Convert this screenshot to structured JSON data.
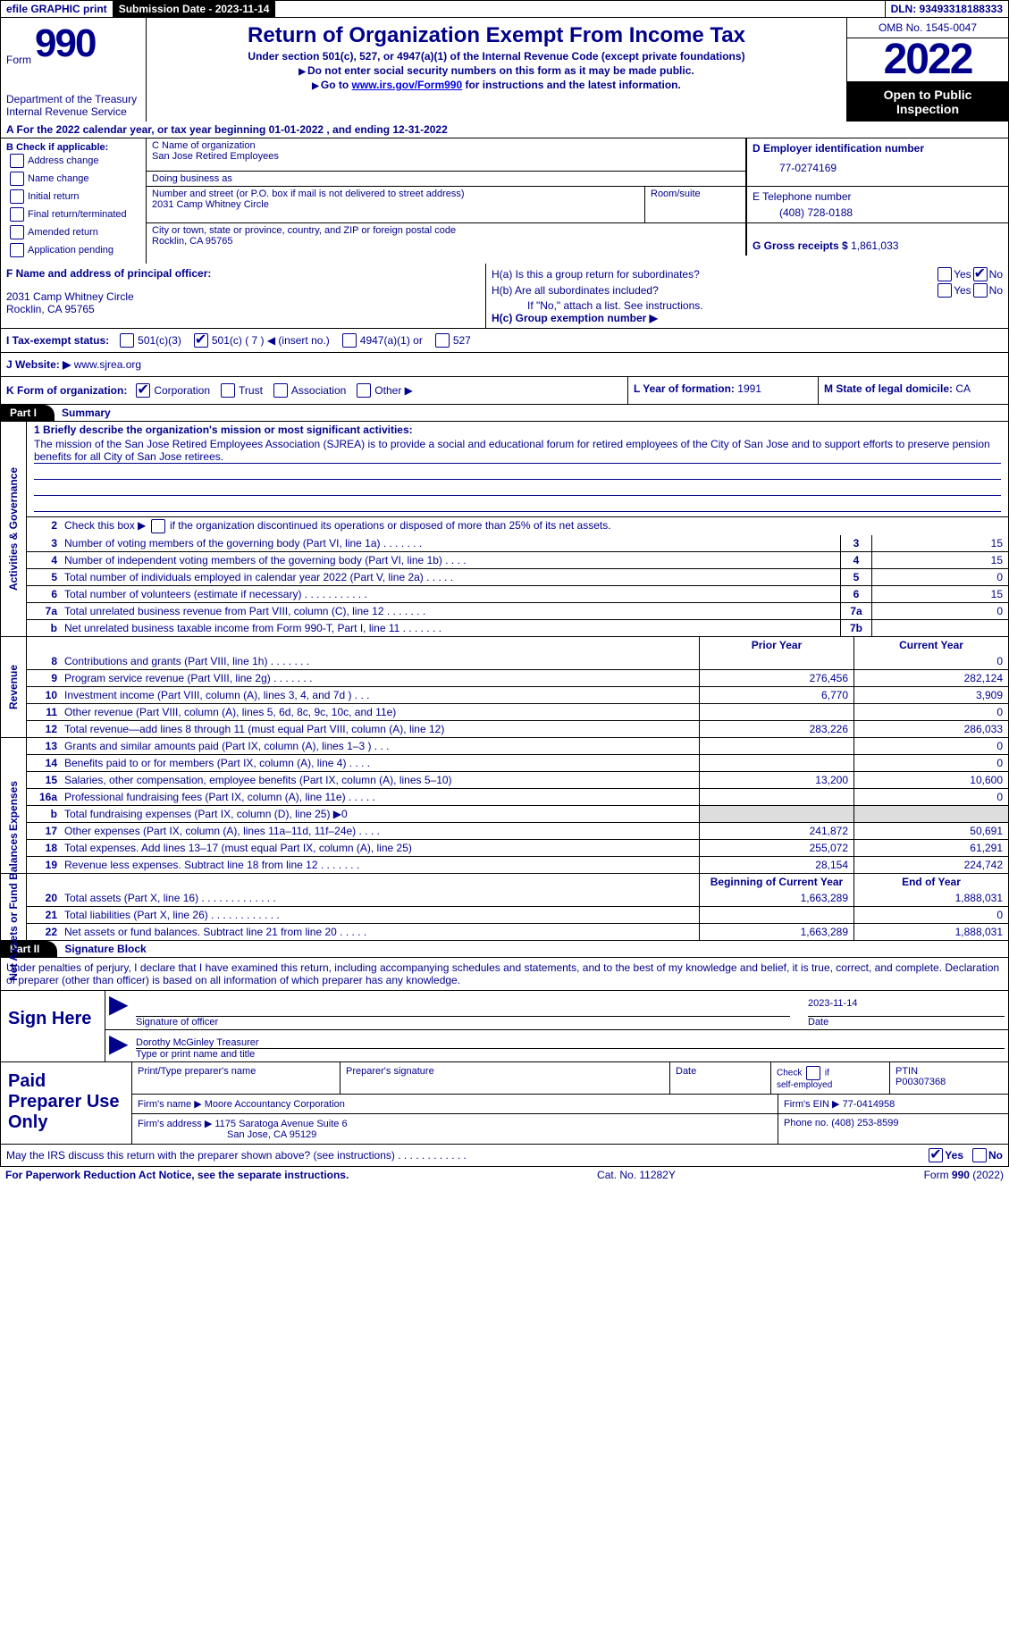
{
  "colors": {
    "primary": "#00008B",
    "black": "#000000",
    "white": "#ffffff",
    "link": "#0000EE",
    "shaded": "#dddddd"
  },
  "topbar": {
    "efile": "efile GRAPHIC print",
    "submission": "Submission Date - 2023-11-14",
    "dln": "DLN: 93493318188333"
  },
  "header": {
    "form_label": "Form",
    "form_num": "990",
    "dept": "Department of the Treasury",
    "irs": "Internal Revenue Service",
    "title": "Return of Organization Exempt From Income Tax",
    "sub1": "Under section 501(c), 527, or 4947(a)(1) of the Internal Revenue Code (except private foundations)",
    "sub2": "Do not enter social security numbers on this form as it may be made public.",
    "sub3_prefix": "Go to ",
    "sub3_link": "www.irs.gov/Form990",
    "sub3_suffix": " for instructions and the latest information.",
    "omb": "OMB No. 1545-0047",
    "year": "2022",
    "open": "Open to Public Inspection"
  },
  "line_a": "A  For the 2022 calendar year, or tax year beginning 01-01-2022     , and ending 12-31-2022",
  "box_b": {
    "title": "B Check if applicable:",
    "items": [
      "Address change",
      "Name change",
      "Initial return",
      "Final return/terminated",
      "Amended return",
      "Application pending"
    ]
  },
  "box_c": {
    "name_label": "C Name of organization",
    "name": "San Jose Retired Employees",
    "dba_label": "Doing business as",
    "dba": "",
    "street_label": "Number and street (or P.O. box if mail is not delivered to street address)",
    "street": "2031 Camp Whitney Circle",
    "room_label": "Room/suite",
    "city_label": "City or town, state or province, country, and ZIP or foreign postal code",
    "city": "Rocklin, CA   95765"
  },
  "box_d": {
    "label": "D Employer identification number",
    "value": "77-0274169"
  },
  "box_e": {
    "label": "E Telephone number",
    "value": "(408) 728-0188"
  },
  "box_g": {
    "label": "G Gross receipts $",
    "value": "1,861,033"
  },
  "box_f": {
    "label": "F  Name and address of principal officer:",
    "line1": "2031 Camp Whitney Circle",
    "line2": "Rocklin, CA   95765"
  },
  "box_h": {
    "a": "H(a)  Is this a group return for subordinates?",
    "b": "H(b)  Are all subordinates included?",
    "note": "If \"No,\" attach a list. See instructions.",
    "c": "H(c)  Group exemption number ▶",
    "yes": "Yes",
    "no": "No"
  },
  "line_i": {
    "label": "I    Tax-exempt status:",
    "o1": "501(c)(3)",
    "o2": "501(c) ( 7 ) ◀ (insert no.)",
    "o3": "4947(a)(1) or",
    "o4": "527"
  },
  "line_j": {
    "label": "J   Website: ▶",
    "value": "www.sjrea.org"
  },
  "line_k": {
    "label": "K Form of organization:",
    "o1": "Corporation",
    "o2": "Trust",
    "o3": "Association",
    "o4": "Other ▶"
  },
  "line_l": {
    "label": "L Year of formation:",
    "value": "1991"
  },
  "line_m": {
    "label": "M State of legal domicile:",
    "value": "CA"
  },
  "part1": {
    "tab": "Part I",
    "title": "Summary"
  },
  "activities": {
    "label": "Activities & Governance",
    "l1": "1   Briefly describe the organization's mission or most significant activities:",
    "mission": "The mission of the San Jose Retired Employees Association (SJREA) is to provide a social and educational forum for retired employees of the City of San Jose and to support efforts to preserve pension benefits for all City of San Jose retirees.",
    "l2": "Check this box ▶         if the organization discontinued its operations or disposed of more than 25% of its net assets.",
    "rows": [
      {
        "n": "3",
        "d": "Number of voting members of the governing body (Part VI, line 1a)    .     .     .     .     .     .     .",
        "m": "3",
        "v": "15"
      },
      {
        "n": "4",
        "d": "Number of independent voting members of the governing body (Part VI, line 1b)    .     .     .     .",
        "m": "4",
        "v": "15"
      },
      {
        "n": "5",
        "d": "Total number of individuals employed in calendar year 2022 (Part V, line 2a)    .     .     .     .     .",
        "m": "5",
        "v": "0"
      },
      {
        "n": "6",
        "d": "Total number of volunteers (estimate if necessary)     .     .     .     .     .     .     .     .     .     .     .",
        "m": "6",
        "v": "15"
      },
      {
        "n": "7a",
        "d": "Total unrelated business revenue from Part VIII, column (C), line 12     .     .     .     .     .     .     .",
        "m": "7a",
        "v": "0"
      },
      {
        "n": "b",
        "d": "Net unrelated business taxable income from Form 990-T, Part I, line 11    .     .     .     .     .     .     .",
        "m": "7b",
        "v": ""
      }
    ]
  },
  "columns": {
    "prior": "Prior Year",
    "current": "Current Year",
    "begin": "Beginning of Current Year",
    "end": "End of Year"
  },
  "revenue": {
    "label": "Revenue",
    "rows": [
      {
        "n": "8",
        "d": "Contributions and grants (Part VIII, line 1h)    .     .     .     .     .     .     .",
        "p": "",
        "c": "0"
      },
      {
        "n": "9",
        "d": "Program service revenue (Part VIII, line 2g)     .     .     .     .     .     .     .",
        "p": "276,456",
        "c": "282,124"
      },
      {
        "n": "10",
        "d": "Investment income (Part VIII, column (A), lines 3, 4, and 7d )     .     .     .",
        "p": "6,770",
        "c": "3,909"
      },
      {
        "n": "11",
        "d": "Other revenue (Part VIII, column (A), lines 5, 6d, 8c, 9c, 10c, and 11e)",
        "p": "",
        "c": "0"
      },
      {
        "n": "12",
        "d": "Total revenue—add lines 8 through 11 (must equal Part VIII, column (A), line 12)",
        "p": "283,226",
        "c": "286,033"
      }
    ]
  },
  "expenses": {
    "label": "Expenses",
    "rows": [
      {
        "n": "13",
        "d": "Grants and similar amounts paid (Part IX, column (A), lines 1–3 )    .     .     .",
        "p": "",
        "c": "0"
      },
      {
        "n": "14",
        "d": "Benefits paid to or for members (Part IX, column (A), line 4)    .     .     .     .",
        "p": "",
        "c": "0"
      },
      {
        "n": "15",
        "d": "Salaries, other compensation, employee benefits (Part IX, column (A), lines 5–10)",
        "p": "13,200",
        "c": "10,600"
      },
      {
        "n": "16a",
        "d": "Professional fundraising fees (Part IX, column (A), line 11e)     .     .     .     .     .",
        "p": "",
        "c": "0"
      },
      {
        "n": "b",
        "d": "Total fundraising expenses (Part IX, column (D), line 25) ▶0",
        "p": "SHADED",
        "c": "SHADED"
      },
      {
        "n": "17",
        "d": "Other expenses (Part IX, column (A), lines 11a–11d, 11f–24e)    .     .     .     .",
        "p": "241,872",
        "c": "50,691"
      },
      {
        "n": "18",
        "d": "Total expenses. Add lines 13–17 (must equal Part IX, column (A), line 25)",
        "p": "255,072",
        "c": "61,291"
      },
      {
        "n": "19",
        "d": "Revenue less expenses. Subtract line 18 from line 12    .     .     .     .     .     .     .",
        "p": "28,154",
        "c": "224,742"
      }
    ]
  },
  "netassets": {
    "label": "Net Assets or Fund Balances",
    "rows": [
      {
        "n": "20",
        "d": "Total assets (Part X, line 16)    .     .     .     .     .     .     .     .     .     .     .     .     .",
        "p": "1,663,289",
        "c": "1,888,031"
      },
      {
        "n": "21",
        "d": "Total liabilities (Part X, line 26)    .     .     .     .     .     .     .     .     .     .     .     .",
        "p": "",
        "c": "0"
      },
      {
        "n": "22",
        "d": "Net assets or fund balances. Subtract line 21 from line 20    .     .     .     .     .",
        "p": "1,663,289",
        "c": "1,888,031"
      }
    ]
  },
  "part2": {
    "tab": "Part II",
    "title": "Signature Block"
  },
  "sig_decl": "Under penalties of perjury, I declare that I have examined this return, including accompanying schedules and statements, and to the best of my knowledge and belief, it is true, correct, and complete. Declaration of preparer (other than officer) is based on all information of which preparer has any knowledge.",
  "sign": {
    "label": "Sign Here",
    "officer_sig": "Signature of officer",
    "date_label": "Date",
    "date": "2023-11-14",
    "name": "Dorothy McGinley  Treasurer",
    "name_label": "Type or print name and title"
  },
  "preparer": {
    "label": "Paid Preparer Use Only",
    "h1": "Print/Type preparer's name",
    "h2": "Preparer's signature",
    "h3": "Date",
    "h4": "Check          if self-employed",
    "h5": "PTIN",
    "ptin": "P00307368",
    "firm_label": "Firm's name      ▶",
    "firm": "Moore Accountancy Corporation",
    "ein_label": "Firm's EIN ▶",
    "ein": "77-0414958",
    "addr_label": "Firm's address ▶",
    "addr1": "1175 Saratoga Avenue Suite 6",
    "addr2": "San Jose, CA   95129",
    "phone_label": "Phone no.",
    "phone": "(408) 253-8599"
  },
  "discuss": {
    "q": "May the IRS discuss this return with the preparer shown above? (see instructions)    .     .     .     .     .     .     .     .     .     .     .     .",
    "yes": "Yes",
    "no": "No"
  },
  "footer": {
    "left": "For Paperwork Reduction Act Notice, see the separate instructions.",
    "mid": "Cat. No. 11282Y",
    "right": "Form 990 (2022)"
  }
}
